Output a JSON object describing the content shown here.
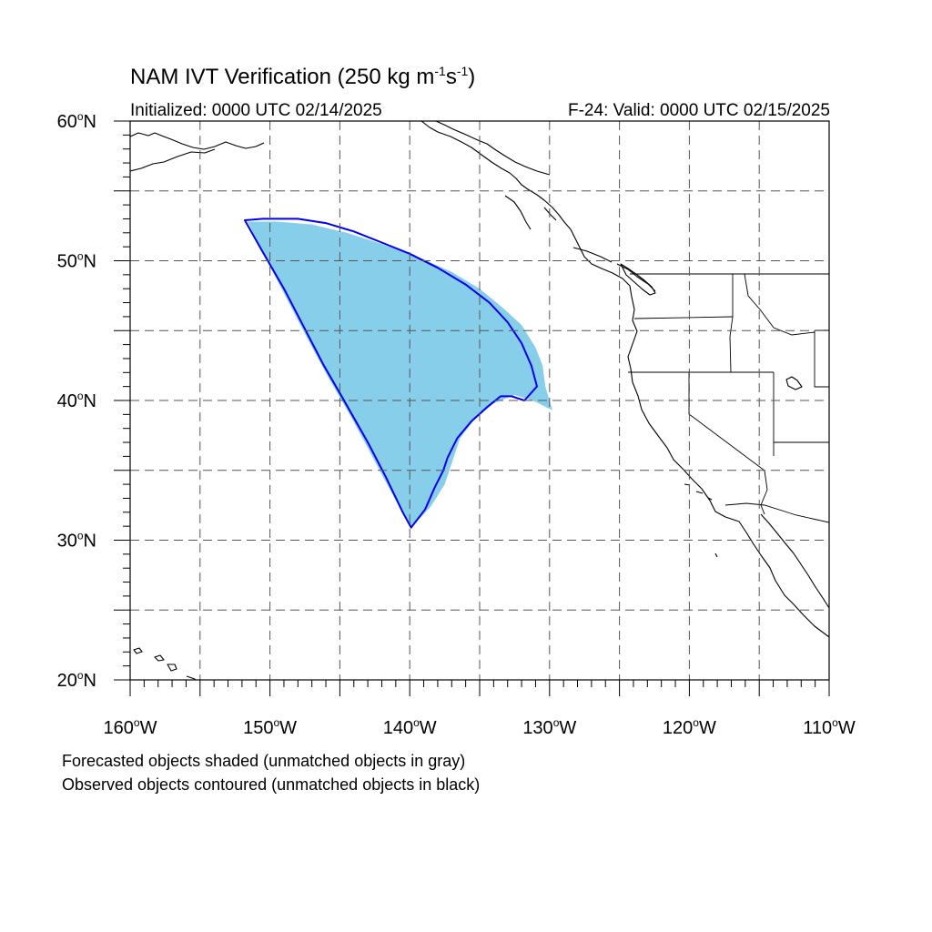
{
  "header": {
    "title_main": "NAM IVT Verification (250 kg m",
    "title_sup1": "-1",
    "title_mid": "s",
    "title_sup2": "-1",
    "title_end": ")",
    "init_text": "Initialized: 0000 UTC 02/14/2025",
    "valid_text": "F-24: Valid: 0000 UTC 02/15/2025"
  },
  "map": {
    "lon_range": [
      -160,
      -110
    ],
    "lat_range": [
      20,
      60
    ],
    "grid_interval_deg": 5,
    "lat_labels": [
      {
        "lat": 60,
        "num": "60",
        "hem": "N"
      },
      {
        "lat": 50,
        "num": "50",
        "hem": "N"
      },
      {
        "lat": 40,
        "num": "40",
        "hem": "N"
      },
      {
        "lat": 30,
        "num": "30",
        "hem": "N"
      },
      {
        "lat": 20,
        "num": "20",
        "hem": "N"
      }
    ],
    "lon_labels": [
      {
        "lon": -160,
        "num": "160",
        "hem": "W"
      },
      {
        "lon": -150,
        "num": "150",
        "hem": "W"
      },
      {
        "lon": -140,
        "num": "140",
        "hem": "W"
      },
      {
        "lon": -130,
        "num": "130",
        "hem": "W"
      },
      {
        "lon": -120,
        "num": "120",
        "hem": "W"
      },
      {
        "lon": -110,
        "num": "110",
        "hem": "W"
      }
    ],
    "colors": {
      "forecast_fill": "#87ceeb",
      "observed_contour": "#0000ee",
      "grid": "#555555",
      "coast": "#000000"
    },
    "forecast_object": [
      [
        -151.6,
        52.8
      ],
      [
        -149.5,
        52.8
      ],
      [
        -147.0,
        52.6
      ],
      [
        -144.5,
        52.0
      ],
      [
        -142.0,
        51.2
      ],
      [
        -139.5,
        50.3
      ],
      [
        -137.0,
        49.2
      ],
      [
        -135.0,
        48.0
      ],
      [
        -133.3,
        46.6
      ],
      [
        -132.0,
        45.4
      ],
      [
        -131.0,
        43.8
      ],
      [
        -130.5,
        42.5
      ],
      [
        -130.3,
        41.0
      ],
      [
        -129.8,
        39.3
      ],
      [
        -131.0,
        39.9
      ],
      [
        -132.5,
        40.4
      ],
      [
        -134.0,
        39.8
      ],
      [
        -135.4,
        38.6
      ],
      [
        -136.4,
        37.3
      ],
      [
        -136.9,
        35.8
      ],
      [
        -137.5,
        34.0
      ],
      [
        -138.5,
        32.4
      ],
      [
        -139.9,
        30.9
      ],
      [
        -140.8,
        32.5
      ],
      [
        -141.9,
        34.5
      ],
      [
        -143.0,
        36.6
      ],
      [
        -144.3,
        39.0
      ],
      [
        -145.8,
        41.6
      ],
      [
        -147.2,
        44.2
      ],
      [
        -148.6,
        46.9
      ],
      [
        -150.0,
        49.6
      ],
      [
        -151.0,
        51.6
      ]
    ],
    "observed_object": [
      [
        -151.8,
        52.9
      ],
      [
        -150.5,
        53.0
      ],
      [
        -148.0,
        53.0
      ],
      [
        -146.0,
        52.7
      ],
      [
        -144.0,
        52.1
      ],
      [
        -142.0,
        51.3
      ],
      [
        -140.0,
        50.5
      ],
      [
        -138.0,
        49.5
      ],
      [
        -136.0,
        48.3
      ],
      [
        -134.3,
        47.0
      ],
      [
        -133.0,
        45.6
      ],
      [
        -132.0,
        44.1
      ],
      [
        -131.3,
        42.5
      ],
      [
        -130.9,
        41.0
      ],
      [
        -131.8,
        40.0
      ],
      [
        -132.7,
        40.3
      ],
      [
        -133.5,
        40.3
      ],
      [
        -134.5,
        39.5
      ],
      [
        -135.6,
        38.5
      ],
      [
        -136.6,
        37.3
      ],
      [
        -137.3,
        35.9
      ],
      [
        -137.6,
        35.0
      ],
      [
        -138.2,
        33.8
      ],
      [
        -138.9,
        32.2
      ],
      [
        -139.9,
        30.9
      ],
      [
        -140.5,
        32.0
      ],
      [
        -141.7,
        34.5
      ],
      [
        -143.0,
        37.0
      ],
      [
        -144.7,
        40.0
      ],
      [
        -146.2,
        42.6
      ],
      [
        -147.6,
        45.3
      ],
      [
        -149.0,
        48.0
      ],
      [
        -150.5,
        50.6
      ]
    ]
  },
  "footnotes": {
    "line1": "Forecasted objects shaded (unmatched objects in gray)",
    "line2": "Observed objects contoured (unmatched objects in black)"
  }
}
